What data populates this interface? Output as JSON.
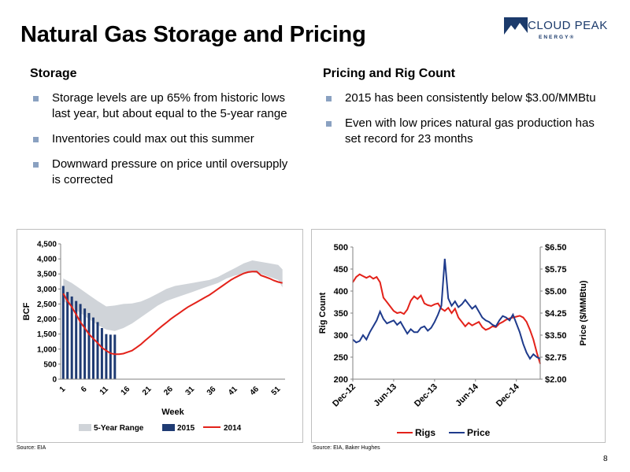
{
  "slide": {
    "title": "Natural Gas Storage and Pricing",
    "page_number": "8",
    "logo": {
      "name": "CLOUD PEAK",
      "sub": "ENERGY®",
      "icon": "mountain-icon",
      "color": "#1b3a6b"
    }
  },
  "left": {
    "heading": "Storage",
    "bullets": [
      "Storage levels are up 65% from historic lows last year, but about equal to the 5-year range",
      "Inventories could max out this summer",
      "Downward pressure on price until oversupply is corrected"
    ],
    "source": "Source:  EIA"
  },
  "right": {
    "heading": "Pricing and Rig Count",
    "bullets": [
      "2015 has been consistently below $3.00/MMBtu",
      "Even with low prices natural gas production has set record for 23 months"
    ],
    "source": "Source:  EIA, Baker Hughes"
  },
  "chart_data": [
    {
      "type": "bar",
      "xlabel": "Week",
      "ylabel": "BCF",
      "ylim": [
        0,
        4500
      ],
      "y_ticks": [
        "0",
        "500",
        "1,000",
        "1,500",
        "2,000",
        "2,500",
        "3,000",
        "3,500",
        "4,000",
        "4,500"
      ],
      "x_ticks": [
        "1",
        "6",
        "11",
        "16",
        "21",
        "26",
        "31",
        "36",
        "41",
        "46",
        "51"
      ],
      "xlim": [
        1,
        52
      ],
      "grid": false,
      "legend": "bottom",
      "series": [
        {
          "name": "5-Year Range",
          "kind": "band",
          "color": "#d0d4d9",
          "x": [
            1,
            3,
            5,
            7,
            9,
            11,
            13,
            15,
            17,
            19,
            21,
            23,
            25,
            27,
            29,
            31,
            33,
            35,
            37,
            39,
            41,
            43,
            45,
            47,
            49,
            51,
            52
          ],
          "upper": [
            3350,
            3200,
            3000,
            2800,
            2600,
            2420,
            2450,
            2500,
            2520,
            2580,
            2700,
            2850,
            3000,
            3100,
            3150,
            3200,
            3250,
            3300,
            3400,
            3550,
            3700,
            3850,
            3950,
            3900,
            3850,
            3800,
            3650
          ],
          "lower": [
            2600,
            2400,
            2200,
            2000,
            1800,
            1650,
            1600,
            1700,
            1850,
            2050,
            2250,
            2450,
            2600,
            2700,
            2800,
            2900,
            3000,
            3100,
            3200,
            3350,
            3450,
            3500,
            3550,
            3500,
            3400,
            3300,
            3050
          ]
        },
        {
          "name": "2015",
          "kind": "bar",
          "color": "#1f3b73",
          "x": [
            1,
            2,
            3,
            4,
            5,
            6,
            7,
            8,
            9,
            10,
            11,
            12,
            13
          ],
          "values": [
            3100,
            2900,
            2750,
            2600,
            2500,
            2350,
            2200,
            2050,
            1900,
            1700,
            1500,
            1480,
            1480
          ]
        },
        {
          "name": "2014",
          "kind": "line",
          "color": "#e3221a",
          "x": [
            1,
            2,
            3,
            4,
            5,
            6,
            7,
            8,
            9,
            10,
            11,
            12,
            13,
            14,
            15,
            16,
            17,
            18,
            19,
            20,
            21,
            22,
            23,
            24,
            25,
            26,
            27,
            28,
            29,
            30,
            31,
            32,
            33,
            34,
            35,
            36,
            37,
            38,
            39,
            40,
            41,
            42,
            43,
            44,
            45,
            46,
            47,
            48,
            49,
            50,
            51,
            52
          ],
          "values": [
            2850,
            2600,
            2400,
            2150,
            1900,
            1700,
            1500,
            1350,
            1200,
            1050,
            950,
            860,
            830,
            830,
            850,
            900,
            950,
            1050,
            1150,
            1280,
            1400,
            1520,
            1650,
            1770,
            1880,
            2000,
            2100,
            2200,
            2300,
            2400,
            2480,
            2560,
            2640,
            2720,
            2800,
            2900,
            3000,
            3100,
            3200,
            3300,
            3380,
            3450,
            3520,
            3560,
            3580,
            3580,
            3450,
            3400,
            3350,
            3280,
            3230,
            3200
          ]
        }
      ]
    },
    {
      "type": "line",
      "xlabel": "",
      "ylabel": "Rig Count",
      "ylabel_right": "Price ($/MMBtu)",
      "ylim": [
        200,
        500
      ],
      "ylim_right": [
        2.0,
        6.5
      ],
      "y_ticks": [
        "200",
        "250",
        "300",
        "350",
        "400",
        "450",
        "500"
      ],
      "y_ticks_right": [
        "$2.00",
        "$2.75",
        "$3.50",
        "$4.25",
        "$5.00",
        "$5.75",
        "$6.50"
      ],
      "x_ticks": [
        "Dec-12",
        "Jun-13",
        "Dec-13",
        "Jun-14",
        "Dec-14"
      ],
      "x_tick_pos": [
        0,
        6,
        12,
        18,
        24
      ],
      "xlim": [
        0,
        27.5
      ],
      "grid": false,
      "legend": "bottom",
      "series": [
        {
          "name": "Rigs",
          "color": "#e3221a",
          "axis": "left",
          "x": [
            0,
            0.5,
            1,
            1.5,
            2,
            2.5,
            3,
            3.5,
            4,
            4.5,
            5,
            5.5,
            6,
            6.5,
            7,
            7.5,
            8,
            8.5,
            9,
            9.5,
            10,
            10.5,
            11,
            11.5,
            12,
            12.5,
            13,
            13.5,
            14,
            14.5,
            15,
            15.5,
            16,
            16.5,
            17,
            17.5,
            18,
            18.5,
            19,
            19.5,
            20,
            20.5,
            21,
            21.5,
            22,
            22.5,
            23,
            23.5,
            24,
            24.5,
            25,
            25.5,
            26,
            26.5,
            27,
            27.5
          ],
          "values": [
            420,
            432,
            438,
            434,
            430,
            434,
            428,
            432,
            420,
            385,
            375,
            365,
            355,
            350,
            352,
            348,
            358,
            378,
            388,
            382,
            390,
            372,
            368,
            366,
            370,
            372,
            360,
            355,
            362,
            350,
            360,
            340,
            330,
            320,
            328,
            322,
            326,
            330,
            318,
            312,
            315,
            320,
            318,
            326,
            330,
            335,
            338,
            340,
            342,
            344,
            340,
            330,
            312,
            290,
            260,
            235
          ]
        },
        {
          "name": "Price",
          "color": "#1f3b8c",
          "axis": "right",
          "x": [
            0,
            0.5,
            1,
            1.5,
            2,
            2.5,
            3,
            3.5,
            4,
            4.5,
            5,
            5.5,
            6,
            6.5,
            7,
            7.5,
            8,
            8.5,
            9,
            9.5,
            10,
            10.5,
            11,
            11.5,
            12,
            12.5,
            13,
            13.5,
            14,
            14.5,
            15,
            15.5,
            16,
            16.5,
            17,
            17.5,
            18,
            18.5,
            19,
            19.5,
            20,
            20.5,
            21,
            21.5,
            22,
            22.5,
            23,
            23.5,
            24,
            24.5,
            25,
            25.5,
            26,
            26.5,
            27,
            27.5
          ],
          "values": [
            3.35,
            3.25,
            3.3,
            3.5,
            3.35,
            3.6,
            3.8,
            4.0,
            4.3,
            4.05,
            3.9,
            3.95,
            4.0,
            3.85,
            3.95,
            3.75,
            3.55,
            3.7,
            3.6,
            3.6,
            3.75,
            3.8,
            3.65,
            3.75,
            3.95,
            4.2,
            4.5,
            6.1,
            4.75,
            4.5,
            4.65,
            4.45,
            4.55,
            4.7,
            4.55,
            4.4,
            4.5,
            4.3,
            4.1,
            4.0,
            3.95,
            3.85,
            3.8,
            4.0,
            4.15,
            4.1,
            4.0,
            4.2,
            3.9,
            3.6,
            3.2,
            2.9,
            2.7,
            2.85,
            2.75,
            2.7
          ]
        }
      ]
    }
  ]
}
